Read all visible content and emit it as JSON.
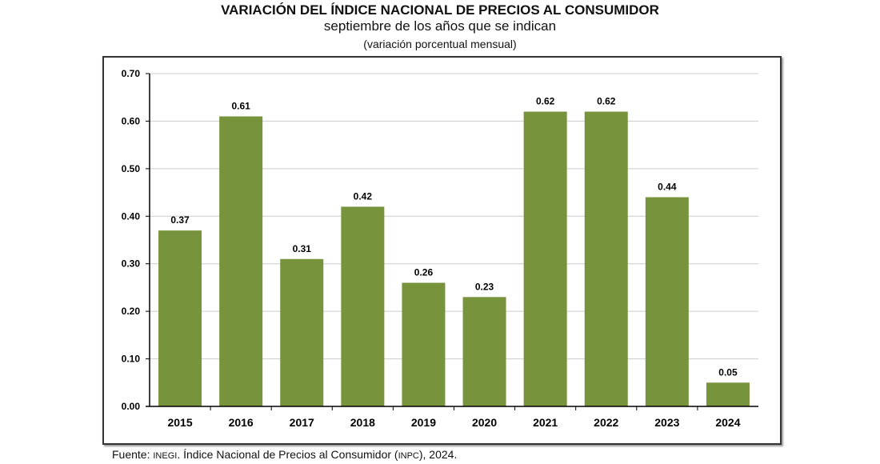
{
  "chart_data": {
    "type": "bar",
    "title": "VARIACIÓN DEL ÍNDICE NACIONAL DE PRECIOS AL CONSUMIDOR",
    "subtitle": "septiembre de los años que se indican",
    "subtitle2": "(variación porcentual mensual)",
    "categories": [
      "2015",
      "2016",
      "2017",
      "2018",
      "2019",
      "2020",
      "2021",
      "2022",
      "2023",
      "2024"
    ],
    "values": [
      0.37,
      0.61,
      0.31,
      0.42,
      0.26,
      0.23,
      0.62,
      0.62,
      0.44,
      0.05
    ],
    "data_labels": [
      "0.37",
      "0.61",
      "0.31",
      "0.42",
      "0.26",
      "0.23",
      "0.62",
      "0.62",
      "0.44",
      "0.05"
    ],
    "yticks": [
      "0.00",
      "0.10",
      "0.20",
      "0.30",
      "0.40",
      "0.50",
      "0.60",
      "0.70"
    ],
    "ylim": [
      0,
      0.7
    ],
    "grid": true,
    "bar_color": "#77933c",
    "xlabel": "",
    "ylabel": ""
  },
  "source": {
    "prefix": "Fuente: ",
    "org": "INEGI",
    "text": ". Índice Nacional de Precios al Consumidor (",
    "abbr": "INPC",
    "suffix": "), 2024."
  }
}
